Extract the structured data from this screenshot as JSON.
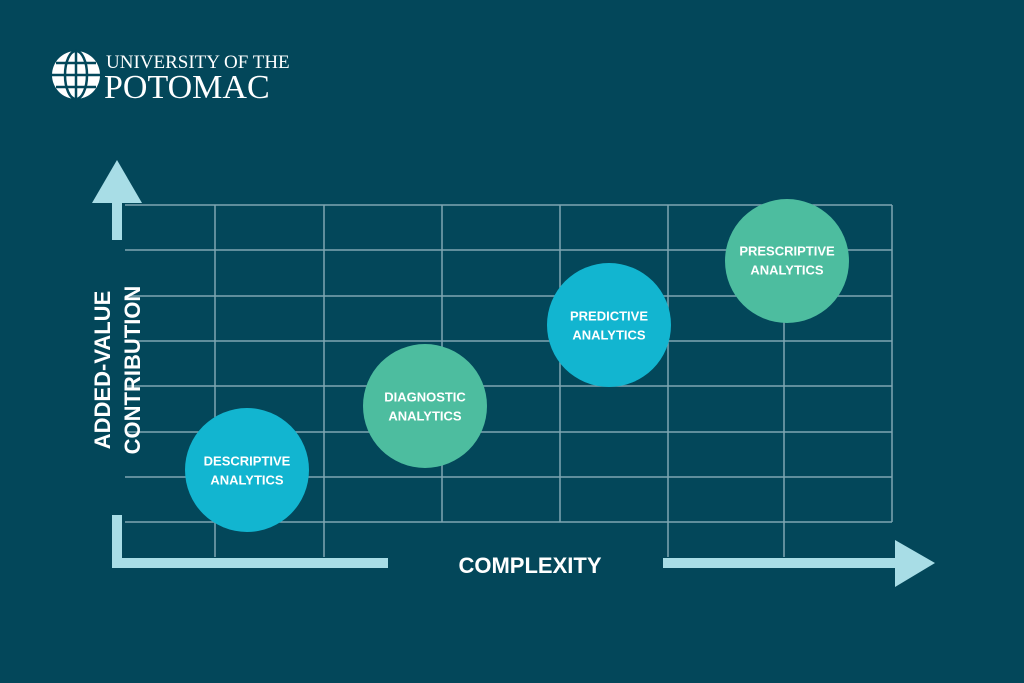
{
  "logo": {
    "line1": "UNIVERSITY OF THE",
    "line2": "POTOMAC"
  },
  "y_axis": {
    "lines": [
      "ADDED-VALUE",
      "CONTRIBUTION"
    ]
  },
  "x_axis": {
    "label": "COMPLEXITY"
  },
  "nodes": [
    {
      "lines": [
        "DESCRIPTIVE",
        "ANALYTICS"
      ]
    },
    {
      "lines": [
        "DIAGNOSTIC",
        "ANALYTICS"
      ]
    },
    {
      "lines": [
        "PREDICTIVE",
        "ANALYTICS"
      ]
    },
    {
      "lines": [
        "PRESCRIPTIVE",
        "ANALYTICS"
      ]
    }
  ]
}
